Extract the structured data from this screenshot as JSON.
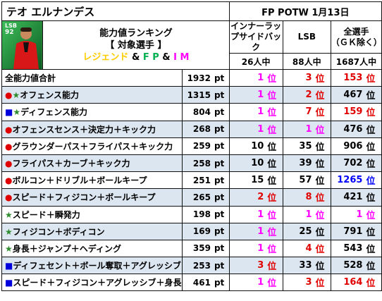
{
  "header": {
    "player_name": "テオ エルナンデス",
    "event": "FP POTW 1月13日",
    "card": {
      "position": "LSB",
      "rating": "92"
    },
    "ranking_title": "能力値ランキング",
    "target_label": "【 対象選手 】",
    "target_legend": "レジェンド",
    "target_amp1": "&",
    "target_fp": "F P",
    "target_amp2": "&",
    "target_im": "I M"
  },
  "columns": [
    {
      "label": "インナーラップサイドバック",
      "count": "26人中"
    },
    {
      "label": "LSB",
      "count": "88人中"
    },
    {
      "label": "全選手\n（ＧＫ除く）",
      "count": "1687人中"
    }
  ],
  "units": {
    "pt": "pt",
    "rank": "位"
  },
  "rows": [
    {
      "marker": "",
      "marker_color": "",
      "label": "全能力値合計",
      "value": "1932",
      "ranks": [
        {
          "n": "1",
          "c": "mag"
        },
        {
          "n": "3",
          "c": "red"
        },
        {
          "n": "153",
          "c": "red"
        }
      ]
    },
    {
      "marker": "●★",
      "marker_color": "dotstar",
      "label": "オフェンス能力",
      "value": "1315",
      "ranks": [
        {
          "n": "1",
          "c": "mag"
        },
        {
          "n": "2",
          "c": "red"
        },
        {
          "n": "467",
          "c": "blk"
        }
      ]
    },
    {
      "marker": "■★",
      "marker_color": "sqstar",
      "label": "ディフェンス能力",
      "value": "804",
      "ranks": [
        {
          "n": "1",
          "c": "mag"
        },
        {
          "n": "7",
          "c": "red"
        },
        {
          "n": "159",
          "c": "red"
        }
      ]
    },
    {
      "marker": "●",
      "marker_color": "dot",
      "label": "オフェンスセンス＋決定力＋キック力",
      "value": "268",
      "ranks": [
        {
          "n": "1",
          "c": "mag"
        },
        {
          "n": "1",
          "c": "mag"
        },
        {
          "n": "476",
          "c": "blk"
        }
      ]
    },
    {
      "marker": "●",
      "marker_color": "dot",
      "label": "グラウンダーパス＋フライパス＋キック力",
      "value": "259",
      "ranks": [
        {
          "n": "10",
          "c": "blk"
        },
        {
          "n": "35",
          "c": "blk"
        },
        {
          "n": "906",
          "c": "blk"
        }
      ]
    },
    {
      "marker": "●",
      "marker_color": "dot",
      "label": "フライパス＋カーブ＋キック力",
      "value": "258",
      "ranks": [
        {
          "n": "10",
          "c": "blk"
        },
        {
          "n": "39",
          "c": "blk"
        },
        {
          "n": "702",
          "c": "blk"
        }
      ]
    },
    {
      "marker": "●",
      "marker_color": "dot",
      "label": "ボルコン＋ドリブル＋ボールキープ",
      "value": "251",
      "ranks": [
        {
          "n": "15",
          "c": "blk"
        },
        {
          "n": "57",
          "c": "blk"
        },
        {
          "n": "1265",
          "c": "blue"
        }
      ]
    },
    {
      "marker": "●",
      "marker_color": "dot",
      "label": "スピード＋フィジコン＋ボールキープ",
      "value": "265",
      "ranks": [
        {
          "n": "2",
          "c": "red"
        },
        {
          "n": "8",
          "c": "red"
        },
        {
          "n": "421",
          "c": "blk"
        }
      ]
    },
    {
      "marker": "★",
      "marker_color": "star",
      "label": "スピード＋瞬発力",
      "value": "198",
      "ranks": [
        {
          "n": "1",
          "c": "mag"
        },
        {
          "n": "1",
          "c": "mag"
        },
        {
          "n": "1",
          "c": "mag"
        }
      ]
    },
    {
      "marker": "★",
      "marker_color": "star",
      "label": "フィジコン＋ボディコン",
      "value": "169",
      "ranks": [
        {
          "n": "1",
          "c": "mag"
        },
        {
          "n": "25",
          "c": "blk"
        },
        {
          "n": "791",
          "c": "blk"
        }
      ]
    },
    {
      "marker": "★",
      "marker_color": "star",
      "label": "身長＋ジャンプ＋ヘディング",
      "value": "359",
      "ranks": [
        {
          "n": "1",
          "c": "mag"
        },
        {
          "n": "4",
          "c": "red"
        },
        {
          "n": "543",
          "c": "blk"
        }
      ]
    },
    {
      "marker": "■",
      "marker_color": "sq",
      "label": "ディフェセント＋ボール奪取＋アグレッシブ",
      "value": "253",
      "ranks": [
        {
          "n": "3",
          "c": "red"
        },
        {
          "n": "33",
          "c": "blk"
        },
        {
          "n": "528",
          "c": "blk"
        }
      ]
    },
    {
      "marker": "■",
      "marker_color": "sq",
      "label": "スピード＋フィジコン＋アグレッシブ＋身長",
      "value": "461",
      "ranks": [
        {
          "n": "1",
          "c": "mag"
        },
        {
          "n": "3",
          "c": "red"
        },
        {
          "n": "164",
          "c": "red"
        }
      ]
    }
  ]
}
